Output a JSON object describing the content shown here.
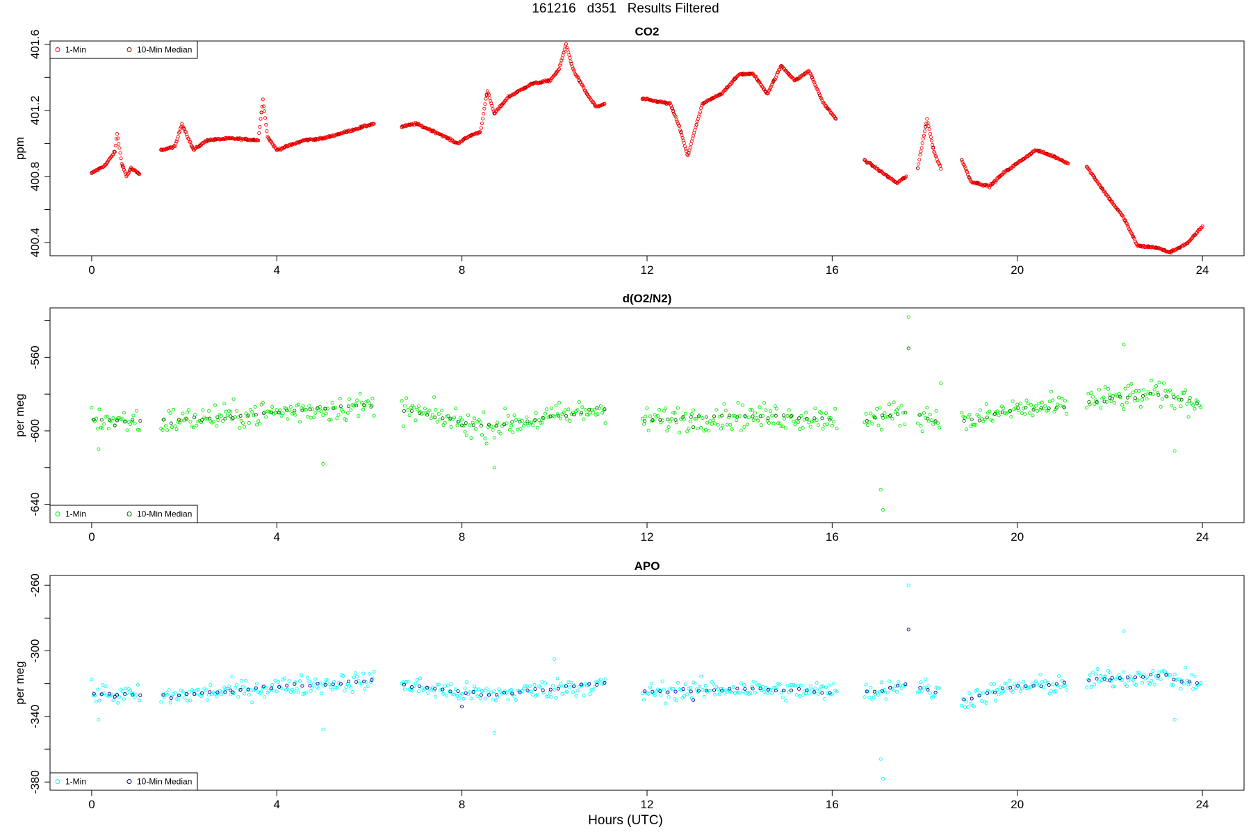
{
  "figure": {
    "title": "161216   d351   Results Filtered",
    "xlabel": "Hours (UTC)"
  },
  "chart_data": [
    {
      "type": "scatter",
      "title": "CO2",
      "ylabel": "ppm",
      "xlim": [
        -0.9,
        24.9
      ],
      "ylim": [
        400.32,
        401.62
      ],
      "xticks": [
        0,
        4,
        8,
        12,
        16,
        20,
        24
      ],
      "yticks": [
        400.4,
        400.8,
        401.2,
        401.6
      ],
      "ytick_labels": [
        "400.4",
        "400.8",
        "401.2",
        "401.6"
      ],
      "legend_position": "top-left",
      "legend": [
        "1-Min",
        "10-Min Median"
      ],
      "colors": {
        "one_min": "#ff0000",
        "median": "#8b0000"
      },
      "segments": [
        [
          0.0,
          1.05
        ],
        [
          1.5,
          6.1
        ],
        [
          6.7,
          11.1
        ],
        [
          11.9,
          16.1
        ],
        [
          16.7,
          17.6
        ],
        [
          17.85,
          18.35
        ],
        [
          18.8,
          21.1
        ],
        [
          21.5,
          24.0
        ]
      ],
      "series": [
        {
          "name": "1-Min",
          "key_points": [
            [
              0.0,
              400.82
            ],
            [
              0.3,
              400.87
            ],
            [
              0.5,
              400.95
            ],
            [
              0.55,
              401.06
            ],
            [
              0.65,
              400.88
            ],
            [
              0.75,
              400.8
            ],
            [
              0.85,
              400.85
            ],
            [
              1.05,
              400.81
            ],
            [
              1.5,
              400.96
            ],
            [
              1.8,
              400.98
            ],
            [
              1.95,
              401.12
            ],
            [
              2.2,
              400.96
            ],
            [
              2.5,
              401.02
            ],
            [
              3.0,
              401.03
            ],
            [
              3.6,
              401.02
            ],
            [
              3.7,
              401.27
            ],
            [
              3.8,
              401.04
            ],
            [
              4.0,
              400.96
            ],
            [
              4.2,
              400.98
            ],
            [
              4.6,
              401.02
            ],
            [
              5.0,
              401.03
            ],
            [
              5.5,
              401.07
            ],
            [
              6.1,
              401.12
            ],
            [
              6.7,
              401.1
            ],
            [
              7.0,
              401.12
            ],
            [
              7.5,
              401.06
            ],
            [
              7.9,
              401.0
            ],
            [
              8.2,
              401.05
            ],
            [
              8.4,
              401.07
            ],
            [
              8.55,
              401.32
            ],
            [
              8.7,
              401.18
            ],
            [
              9.0,
              401.28
            ],
            [
              9.5,
              401.36
            ],
            [
              9.9,
              401.38
            ],
            [
              10.1,
              401.45
            ],
            [
              10.25,
              401.6
            ],
            [
              10.4,
              401.45
            ],
            [
              10.7,
              401.3
            ],
            [
              10.9,
              401.22
            ],
            [
              11.1,
              401.24
            ],
            [
              11.9,
              401.27
            ],
            [
              12.5,
              401.24
            ],
            [
              12.7,
              401.1
            ],
            [
              12.88,
              400.92
            ],
            [
              13.0,
              401.05
            ],
            [
              13.2,
              401.24
            ],
            [
              13.6,
              401.3
            ],
            [
              14.0,
              401.42
            ],
            [
              14.3,
              401.42
            ],
            [
              14.6,
              401.3
            ],
            [
              14.9,
              401.47
            ],
            [
              15.2,
              401.38
            ],
            [
              15.5,
              401.44
            ],
            [
              15.8,
              401.25
            ],
            [
              16.1,
              401.14
            ],
            [
              16.7,
              400.9
            ],
            [
              17.0,
              400.84
            ],
            [
              17.4,
              400.76
            ],
            [
              17.6,
              400.8
            ],
            [
              17.85,
              400.85
            ],
            [
              17.95,
              401.0
            ],
            [
              18.05,
              401.15
            ],
            [
              18.2,
              400.95
            ],
            [
              18.35,
              400.85
            ],
            [
              18.8,
              400.9
            ],
            [
              19.0,
              400.77
            ],
            [
              19.4,
              400.74
            ],
            [
              19.7,
              400.82
            ],
            [
              20.0,
              400.88
            ],
            [
              20.4,
              400.96
            ],
            [
              20.8,
              400.92
            ],
            [
              21.1,
              400.88
            ],
            [
              21.5,
              400.86
            ],
            [
              21.9,
              400.7
            ],
            [
              22.3,
              400.55
            ],
            [
              22.6,
              400.38
            ],
            [
              23.0,
              400.37
            ],
            [
              23.3,
              400.34
            ],
            [
              23.7,
              400.4
            ],
            [
              24.0,
              400.5
            ]
          ]
        },
        {
          "name": "10-Min Median",
          "note": "overlaps 1-Min points"
        }
      ]
    },
    {
      "type": "scatter",
      "title": "d(O2/N2)",
      "ylabel": "per meg",
      "xlim": [
        -0.9,
        24.9
      ],
      "ylim": [
        -650,
        -533
      ],
      "xticks": [
        0,
        4,
        8,
        12,
        16,
        20,
        24
      ],
      "yticks": [
        -640,
        -600,
        -560
      ],
      "ytick_labels": [
        "-640",
        "-600",
        "-560"
      ],
      "legend_position": "bottom-left",
      "legend": [
        "1-Min",
        "10-Min Median"
      ],
      "colors": {
        "one_min": "#00ee00",
        "median": "#006400"
      },
      "segments": [
        [
          0.0,
          1.05
        ],
        [
          1.5,
          6.1
        ],
        [
          6.7,
          11.1
        ],
        [
          11.9,
          16.1
        ],
        [
          16.7,
          17.6
        ],
        [
          17.85,
          18.35
        ],
        [
          18.8,
          21.1
        ],
        [
          21.5,
          24.0
        ]
      ],
      "series": [
        {
          "name": "1-Min",
          "trend": [
            [
              0.0,
              -594
            ],
            [
              1.5,
              -595
            ],
            [
              4.0,
              -590
            ],
            [
              6.1,
              -586
            ],
            [
              6.7,
              -588
            ],
            [
              8.5,
              -598
            ],
            [
              11.1,
              -588
            ],
            [
              11.9,
              -594
            ],
            [
              14.0,
              -592
            ],
            [
              16.1,
              -593
            ],
            [
              16.7,
              -594
            ],
            [
              17.6,
              -590
            ],
            [
              18.8,
              -596
            ],
            [
              20.0,
              -588
            ],
            [
              21.1,
              -587
            ],
            [
              21.5,
              -584
            ],
            [
              23.0,
              -580
            ],
            [
              24.0,
              -585
            ]
          ],
          "spread": 7,
          "outliers": [
            [
              0.15,
              -610
            ],
            [
              5.0,
              -618
            ],
            [
              8.7,
              -620
            ],
            [
              17.1,
              -643
            ],
            [
              17.05,
              -632
            ],
            [
              17.65,
              -538
            ],
            [
              18.35,
              -574
            ],
            [
              22.3,
              -553
            ],
            [
              23.4,
              -611
            ]
          ]
        },
        {
          "name": "10-Min Median",
          "points": [
            [
              17.65,
              -555
            ],
            [
              0.5,
              -597
            ],
            [
              3.0,
              -592
            ],
            [
              8.0,
              -597
            ],
            [
              13.0,
              -598
            ],
            [
              22.0,
              -582
            ]
          ]
        }
      ]
    },
    {
      "type": "scatter",
      "title": "APO",
      "ylabel": "per meg",
      "xlim": [
        -0.9,
        24.9
      ],
      "ylim": [
        -385,
        -254
      ],
      "xticks": [
        0,
        4,
        8,
        12,
        16,
        20,
        24
      ],
      "yticks": [
        -380,
        -340,
        -300,
        -260
      ],
      "ytick_labels": [
        "-380",
        "-340",
        "-300",
        "-260"
      ],
      "legend_position": "bottom-left",
      "legend": [
        "1-Min",
        "10-Min Median"
      ],
      "colors": {
        "one_min": "#00ffff",
        "median": "#00008b"
      },
      "segments": [
        [
          0.0,
          1.05
        ],
        [
          1.5,
          6.1
        ],
        [
          6.7,
          11.1
        ],
        [
          11.9,
          16.1
        ],
        [
          16.7,
          17.6
        ],
        [
          17.85,
          18.35
        ],
        [
          18.8,
          21.1
        ],
        [
          21.5,
          24.0
        ]
      ],
      "series": [
        {
          "name": "1-Min",
          "trend": [
            [
              0.0,
              -326
            ],
            [
              1.5,
              -328
            ],
            [
              4.0,
              -322
            ],
            [
              6.1,
              -318
            ],
            [
              6.7,
              -321
            ],
            [
              8.5,
              -327
            ],
            [
              11.1,
              -320
            ],
            [
              11.9,
              -325
            ],
            [
              14.0,
              -323
            ],
            [
              16.1,
              -325
            ],
            [
              16.7,
              -326
            ],
            [
              17.6,
              -320
            ],
            [
              18.8,
              -330
            ],
            [
              20.0,
              -322
            ],
            [
              21.1,
              -320
            ],
            [
              21.5,
              -318
            ],
            [
              23.0,
              -315
            ],
            [
              24.0,
              -320
            ]
          ],
          "spread": 6,
          "outliers": [
            [
              0.15,
              -342
            ],
            [
              5.0,
              -348
            ],
            [
              8.7,
              -350
            ],
            [
              17.1,
              -378
            ],
            [
              17.05,
              -366
            ],
            [
              17.65,
              -260
            ],
            [
              22.3,
              -288
            ],
            [
              23.4,
              -342
            ],
            [
              10.0,
              -305
            ]
          ]
        },
        {
          "name": "10-Min Median",
          "points": [
            [
              17.65,
              -287
            ],
            [
              0.5,
              -328
            ],
            [
              3.0,
              -324
            ],
            [
              8.0,
              -334
            ],
            [
              13.0,
              -330
            ],
            [
              22.0,
              -318
            ]
          ]
        }
      ]
    }
  ]
}
